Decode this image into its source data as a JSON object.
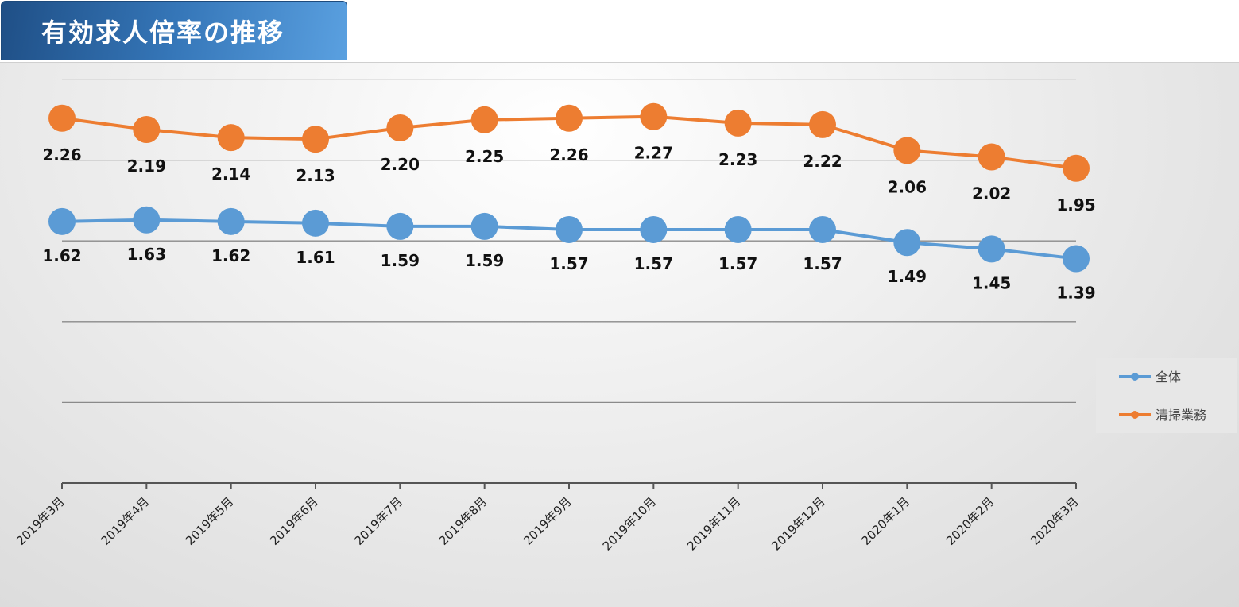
{
  "header": {
    "title": "有効求人倍率の推移"
  },
  "colors": {
    "overall": "#5b9bd5",
    "cleaning": "#ed7d31"
  },
  "chart_data": {
    "type": "line",
    "title": "有効求人倍率の推移",
    "categories": [
      "2019年3月",
      "2019年4月",
      "2019年5月",
      "2019年6月",
      "2019年7月",
      "2019年8月",
      "2019年9月",
      "2019年10月",
      "2019年11月",
      "2019年12月",
      "2020年1月",
      "2020年2月",
      "2020年3月"
    ],
    "series": [
      {
        "name": "全体",
        "color": "#5b9bd5",
        "values": [
          1.62,
          1.63,
          1.62,
          1.61,
          1.59,
          1.59,
          1.57,
          1.57,
          1.57,
          1.57,
          1.49,
          1.45,
          1.39
        ]
      },
      {
        "name": "清掃業務",
        "color": "#ed7d31",
        "values": [
          2.26,
          2.19,
          2.14,
          2.13,
          2.2,
          2.25,
          2.26,
          2.27,
          2.23,
          2.22,
          2.06,
          2.02,
          1.95
        ]
      }
    ],
    "legend_position": "right",
    "grid": true,
    "data_labels": "below"
  }
}
